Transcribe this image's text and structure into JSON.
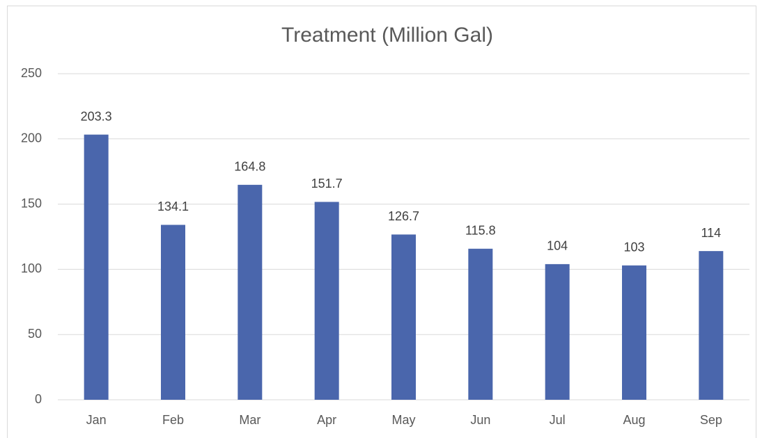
{
  "chart_data": {
    "type": "bar",
    "title": "Treatment (Million Gal)",
    "categories": [
      "Jan",
      "Feb",
      "Mar",
      "Apr",
      "May",
      "Jun",
      "Jul",
      "Aug",
      "Sep"
    ],
    "values": [
      203.3,
      134.1,
      164.8,
      151.7,
      126.7,
      115.8,
      104,
      103,
      114
    ],
    "color": "#4a66ac",
    "ylim": [
      0,
      250
    ],
    "yticks": [
      0,
      50,
      100,
      150,
      200,
      250
    ],
    "grid": true,
    "data_labels": true
  }
}
